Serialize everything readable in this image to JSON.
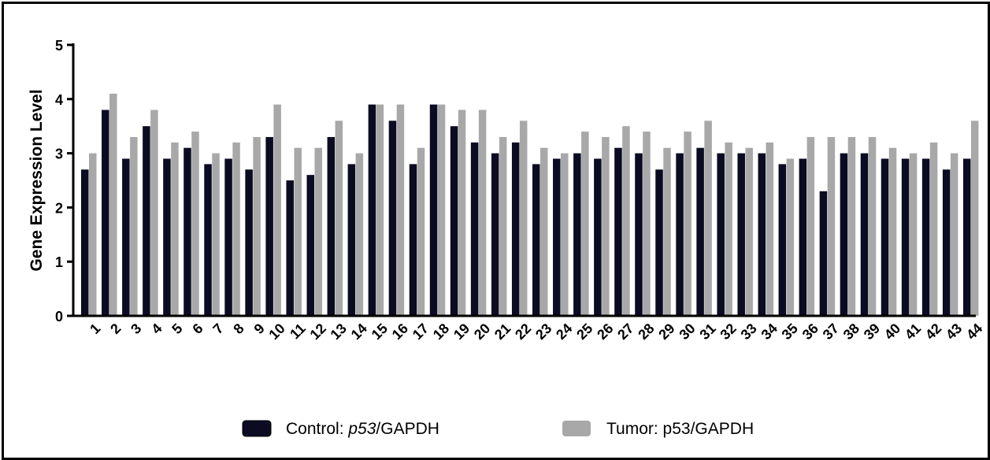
{
  "chart_data": {
    "type": "bar",
    "title": "",
    "xlabel": "",
    "ylabel": "Gene Expression Level",
    "ylim": [
      0,
      5
    ],
    "yticks": [
      0,
      1,
      2,
      3,
      4,
      5
    ],
    "grid": false,
    "legend_position": "bottom",
    "categories": [
      "1",
      "2",
      "3",
      "4",
      "5",
      "6",
      "7",
      "8",
      "9",
      "10",
      "11",
      "12",
      "13",
      "14",
      "15",
      "16",
      "17",
      "18",
      "19",
      "20",
      "21",
      "22",
      "23",
      "24",
      "25",
      "26",
      "27",
      "28",
      "29",
      "30",
      "31",
      "32",
      "33",
      "34",
      "35",
      "36",
      "37",
      "38",
      "39",
      "40",
      "41",
      "42",
      "43",
      "44"
    ],
    "series": [
      {
        "name_prefix": "Control: ",
        "name_italic": "p53",
        "name_suffix": "/GAPDH",
        "color": "#0b0b22",
        "values": [
          2.7,
          3.8,
          2.9,
          3.5,
          2.9,
          3.1,
          2.8,
          2.9,
          2.7,
          3.3,
          2.5,
          2.6,
          3.3,
          2.8,
          3.9,
          3.6,
          2.8,
          3.9,
          3.5,
          3.2,
          3.0,
          3.2,
          2.8,
          2.9,
          3.0,
          2.9,
          3.1,
          3.0,
          2.7,
          3.0,
          3.1,
          3.0,
          3.0,
          3.0,
          2.8,
          2.9,
          2.3,
          3.0,
          3.0,
          2.9,
          2.9,
          2.9,
          2.7,
          2.9
        ]
      },
      {
        "name": "Tumor: p53/GAPDH",
        "color": "#a8a8a8",
        "values": [
          3.0,
          4.1,
          3.3,
          3.8,
          3.2,
          3.4,
          3.0,
          3.2,
          3.3,
          3.9,
          3.1,
          3.1,
          3.6,
          3.0,
          3.9,
          3.9,
          3.1,
          3.9,
          3.8,
          3.8,
          3.3,
          3.6,
          3.1,
          3.0,
          3.4,
          3.3,
          3.5,
          3.4,
          3.1,
          3.4,
          3.6,
          3.2,
          3.1,
          3.2,
          2.9,
          3.3,
          3.3,
          3.3,
          3.3,
          3.1,
          3.0,
          3.2,
          3.0,
          3.6
        ]
      }
    ]
  }
}
